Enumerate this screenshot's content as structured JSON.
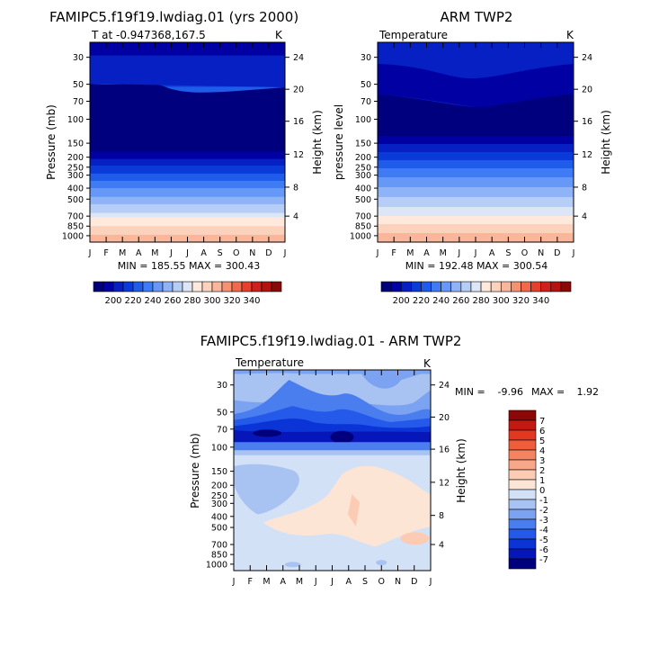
{
  "months": [
    "J",
    "F",
    "M",
    "A",
    "M",
    "J",
    "J",
    "A",
    "S",
    "O",
    "N",
    "D",
    "J"
  ],
  "colors": {
    "temp_scale": [
      "#00007f",
      "#0000a3",
      "#0620c4",
      "#0a3ad8",
      "#1f5cea",
      "#3f7cf3",
      "#6699f7",
      "#8fb3f7",
      "#b6cdf5",
      "#dce6f7",
      "#ffe9dc",
      "#fdd2bd",
      "#fab59a",
      "#f6926f",
      "#f0694a",
      "#e6402d",
      "#d0201c",
      "#b3120f",
      "#8c0808"
    ],
    "diff_scale": [
      "#00007f",
      "#0616b8",
      "#0a34d6",
      "#2459ea",
      "#4a7eef",
      "#7ba3f2",
      "#a8c2f2",
      "#d3e1f7",
      "#fde5d6",
      "#fbcbb3",
      "#f8a889",
      "#f4845f",
      "#ee5e3a",
      "#e2381f",
      "#c11a12",
      "#8c0808"
    ]
  },
  "chart_data": [
    {
      "type": "heatmap",
      "title": "FAMIPC5.f19f19.lwdiag.01 (yrs 2000)",
      "subtitle_left": "T at -0.947368,167.5",
      "units": "K",
      "ylabel": "Pressure (mb)",
      "ylabel_right": "Height (km)",
      "yticks": [
        "30",
        "50",
        "70",
        "100",
        "150",
        "200",
        "250",
        "300",
        "400",
        "500",
        "700",
        "850",
        "1000"
      ],
      "yticks_right": [
        "24",
        "20",
        "16",
        "12",
        "8",
        "4"
      ],
      "min_max": "MIN = 185.55  MAX = 300.43",
      "levels": [
        "30",
        "50",
        "70",
        "100",
        "150",
        "200",
        "250",
        "300",
        "400",
        "500",
        "700",
        "850",
        "1000"
      ],
      "band_boundaries": [
        18,
        48,
        61,
        105,
        150,
        160,
        169,
        180,
        190,
        200,
        212,
        222,
        234,
        240,
        252,
        264,
        274
      ],
      "band_colors": [
        1,
        2,
        3,
        4,
        0,
        1,
        2,
        3,
        4,
        5,
        6,
        7,
        8,
        9,
        10,
        11,
        12
      ],
      "colorbar_ticks": [
        "200",
        "220",
        "240",
        "260",
        "280",
        "300",
        "320",
        "340"
      ]
    },
    {
      "type": "heatmap",
      "title": "ARM TWP2",
      "subtitle_left": "Temperature",
      "units": "K",
      "ylabel": "pressure level",
      "ylabel_right": "Height (km)",
      "yticks": [
        "30",
        "50",
        "70",
        "100",
        "150",
        "200",
        "250",
        "300",
        "400",
        "500",
        "700",
        "850",
        "1000"
      ],
      "yticks_right": [
        "24",
        "20",
        "16",
        "12",
        "8",
        "4"
      ],
      "min_max": "MIN = 192.48  MAX = 300.54",
      "colorbar_ticks": [
        "200",
        "220",
        "240",
        "260",
        "280",
        "300",
        "320",
        "340"
      ]
    },
    {
      "type": "heatmap",
      "title": "FAMIPC5.f19f19.lwdiag.01 - ARM TWP2",
      "subtitle_left": "Temperature",
      "units": "K",
      "ylabel": "Pressure (mb)",
      "ylabel_right": "Height (km)",
      "yticks": [
        "30",
        "50",
        "70",
        "100",
        "150",
        "200",
        "250",
        "300",
        "400",
        "500",
        "700",
        "850",
        "1000"
      ],
      "yticks_right": [
        "24",
        "20",
        "16",
        "12",
        "8",
        "4"
      ],
      "min_label": "MIN =",
      "min_value": "-9.96",
      "max_label": "MAX =",
      "max_value": "1.92",
      "colorbar_ticks": [
        "7",
        "6",
        "5",
        "4",
        "3",
        "2",
        "1",
        "0",
        "-1",
        "-2",
        "-3",
        "-4",
        "-5",
        "-6",
        "-7"
      ]
    }
  ]
}
